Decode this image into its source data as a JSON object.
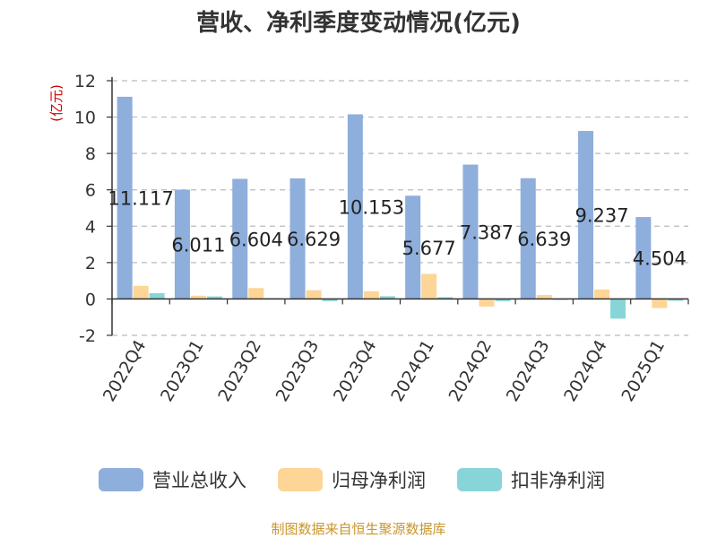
{
  "chart_data": {
    "type": "bar",
    "title": "营收、净利季度变动情况(亿元)",
    "ylabel": "(亿元)",
    "xlabel": "",
    "ylim": [
      -2,
      12
    ],
    "yticks": [
      -2,
      0,
      2,
      4,
      6,
      8,
      10,
      12
    ],
    "grid": true,
    "legend_position": "bottom",
    "categories": [
      "2022Q4",
      "2023Q1",
      "2023Q2",
      "2023Q3",
      "2023Q4",
      "2024Q1",
      "2024Q2",
      "2024Q3",
      "2024Q4",
      "2025Q1"
    ],
    "series": [
      {
        "name": "营业总收入",
        "color": "#8eaedc",
        "values": [
          11.117,
          6.011,
          6.604,
          6.629,
          10.153,
          5.677,
          7.387,
          6.639,
          9.237,
          4.504
        ],
        "labels": [
          "11.117",
          "6.011",
          "6.604",
          "6.629",
          "10.153",
          "5.677",
          "7.387",
          "6.639",
          "9.237",
          "4.504"
        ]
      },
      {
        "name": "归母净利润",
        "color": "#fdd596",
        "values": [
          0.72,
          0.18,
          0.6,
          0.48,
          0.42,
          1.38,
          -0.42,
          0.22,
          0.52,
          -0.5
        ]
      },
      {
        "name": "扣非净利润",
        "color": "#88d5d7",
        "values": [
          0.32,
          0.14,
          0.05,
          -0.12,
          0.15,
          0.1,
          -0.12,
          -0.05,
          -1.08,
          -0.1
        ]
      }
    ],
    "source": "制图数据来自恒生聚源数据库"
  }
}
